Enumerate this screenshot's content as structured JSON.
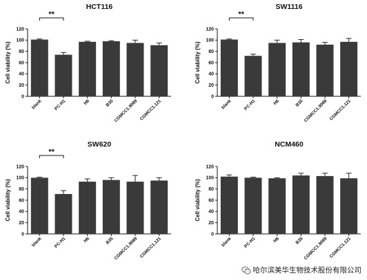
{
  "chart_data": [
    {
      "type": "bar",
      "title": "HCT116",
      "ylabel": "Cell viability (%)",
      "ylim": [
        0,
        120
      ],
      "yticks": [
        0,
        20,
        40,
        60,
        80,
        100,
        120
      ],
      "categories": [
        "blank",
        "PC-H1",
        "H6",
        "B35",
        "CGMCC1.9089",
        "CGMCC1.121"
      ],
      "values": [
        101,
        74,
        97,
        98,
        95,
        91
      ],
      "errors": [
        1,
        4,
        1,
        1,
        5,
        4
      ],
      "significance": [
        {
          "from": 0,
          "to": 1,
          "label": "**"
        }
      ]
    },
    {
      "type": "bar",
      "title": "SW1116",
      "ylabel": "Cell viability (%)",
      "ylim": [
        0,
        120
      ],
      "yticks": [
        0,
        20,
        40,
        60,
        80,
        100,
        120
      ],
      "categories": [
        "blank",
        "PC-H1",
        "H6",
        "B35",
        "CGMCC1.9089",
        "CGMCC1.121"
      ],
      "values": [
        101,
        72,
        95,
        96,
        92,
        97
      ],
      "errors": [
        1,
        3,
        5,
        5,
        4,
        6
      ],
      "significance": [
        {
          "from": 0,
          "to": 1,
          "label": "**"
        }
      ]
    },
    {
      "type": "bar",
      "title": "SW620",
      "ylabel": "Cell viability (%)",
      "ylim": [
        0,
        120
      ],
      "yticks": [
        0,
        20,
        40,
        60,
        80,
        100,
        120
      ],
      "categories": [
        "blank",
        "PC-H1",
        "H6",
        "B35",
        "CGMCC1.9089",
        "CGMCC1.121"
      ],
      "values": [
        100,
        71,
        93,
        96,
        93,
        95
      ],
      "errors": [
        1,
        6,
        5,
        4,
        11,
        5
      ],
      "significance": [
        {
          "from": 0,
          "to": 1,
          "label": "**"
        }
      ]
    },
    {
      "type": "bar",
      "title": "NCM460",
      "ylabel": "Cell viability (%)",
      "ylim": [
        0,
        120
      ],
      "yticks": [
        0,
        20,
        40,
        60,
        80,
        100,
        120
      ],
      "categories": [
        "blank",
        "PC-H1",
        "H6",
        "B35",
        "CGMCC1.9089",
        "CGMCC1.121"
      ],
      "values": [
        102,
        100,
        99,
        104,
        103,
        99
      ],
      "errors": [
        3,
        1,
        1,
        4,
        5,
        9
      ],
      "significance": []
    }
  ],
  "watermark": {
    "text": "哈尔滨美华生物技术股份有限公司",
    "icon": "wechat-icon"
  }
}
